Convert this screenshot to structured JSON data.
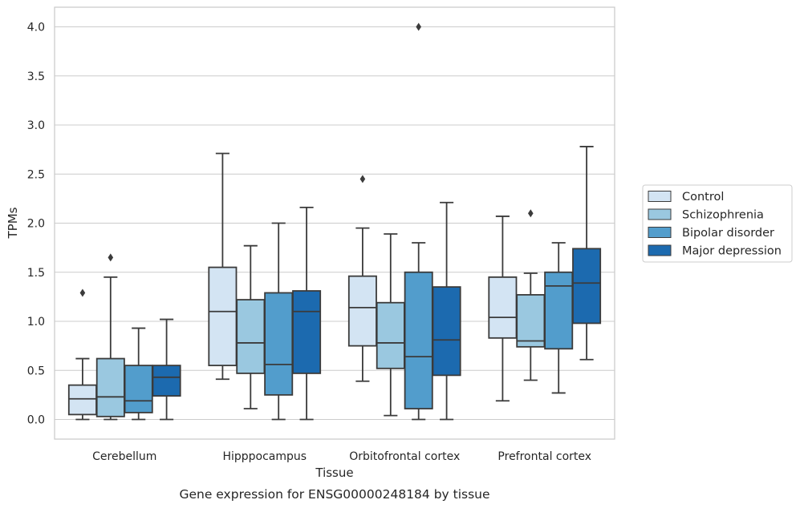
{
  "chart_data": {
    "type": "box",
    "caption": "Gene expression for ENSG00000248184 by tissue",
    "xlabel": "Tissue",
    "ylabel": "TPMs",
    "ylim": [
      -0.2,
      4.2
    ],
    "yticks": [
      "0.0",
      "0.5",
      "1.0",
      "1.5",
      "2.0",
      "2.5",
      "3.0",
      "3.5",
      "4.0"
    ],
    "grid": "horizontal",
    "legend_position": "right",
    "categories": [
      "Cerebellum",
      "Hipppocampus",
      "Orbitofrontal cortex",
      "Prefrontal cortex"
    ],
    "series": [
      {
        "name": "Control",
        "color": "#d3e4f3",
        "boxes": [
          {
            "whislo": 0.0,
            "q1": 0.05,
            "med": 0.21,
            "q3": 0.35,
            "whishi": 0.62,
            "fliers": [
              1.29
            ]
          },
          {
            "whislo": 0.41,
            "q1": 0.55,
            "med": 1.1,
            "q3": 1.55,
            "whishi": 2.71,
            "fliers": []
          },
          {
            "whislo": 0.39,
            "q1": 0.75,
            "med": 1.14,
            "q3": 1.46,
            "whishi": 1.95,
            "fliers": [
              2.45
            ]
          },
          {
            "whislo": 0.19,
            "q1": 0.83,
            "med": 1.04,
            "q3": 1.45,
            "whishi": 2.07,
            "fliers": []
          }
        ]
      },
      {
        "name": "Schizophrenia",
        "color": "#9ac8e0",
        "boxes": [
          {
            "whislo": 0.0,
            "q1": 0.03,
            "med": 0.23,
            "q3": 0.62,
            "whishi": 1.45,
            "fliers": [
              1.65
            ]
          },
          {
            "whislo": 0.11,
            "q1": 0.47,
            "med": 0.78,
            "q3": 1.22,
            "whishi": 1.77,
            "fliers": []
          },
          {
            "whislo": 0.04,
            "q1": 0.52,
            "med": 0.78,
            "q3": 1.19,
            "whishi": 1.89,
            "fliers": []
          },
          {
            "whislo": 0.4,
            "q1": 0.74,
            "med": 0.8,
            "q3": 1.27,
            "whishi": 1.49,
            "fliers": [
              2.1
            ]
          }
        ]
      },
      {
        "name": "Bipolar disorder",
        "color": "#529dcc",
        "boxes": [
          {
            "whislo": 0.0,
            "q1": 0.07,
            "med": 0.19,
            "q3": 0.55,
            "whishi": 0.93,
            "fliers": []
          },
          {
            "whislo": 0.0,
            "q1": 0.25,
            "med": 0.56,
            "q3": 1.29,
            "whishi": 2.0,
            "fliers": []
          },
          {
            "whislo": 0.0,
            "q1": 0.11,
            "med": 0.64,
            "q3": 1.5,
            "whishi": 1.8,
            "fliers": [
              4.0
            ]
          },
          {
            "whislo": 0.27,
            "q1": 0.72,
            "med": 1.36,
            "q3": 1.5,
            "whishi": 1.8,
            "fliers": []
          }
        ]
      },
      {
        "name": "Major depression",
        "color": "#1c6aaf",
        "boxes": [
          {
            "whislo": 0.0,
            "q1": 0.24,
            "med": 0.43,
            "q3": 0.55,
            "whishi": 1.02,
            "fliers": []
          },
          {
            "whislo": 0.0,
            "q1": 0.47,
            "med": 1.1,
            "q3": 1.31,
            "whishi": 2.16,
            "fliers": []
          },
          {
            "whislo": 0.0,
            "q1": 0.45,
            "med": 0.81,
            "q3": 1.35,
            "whishi": 2.21,
            "fliers": []
          },
          {
            "whislo": 0.61,
            "q1": 0.98,
            "med": 1.39,
            "q3": 1.74,
            "whishi": 2.78,
            "fliers": []
          }
        ]
      }
    ]
  }
}
